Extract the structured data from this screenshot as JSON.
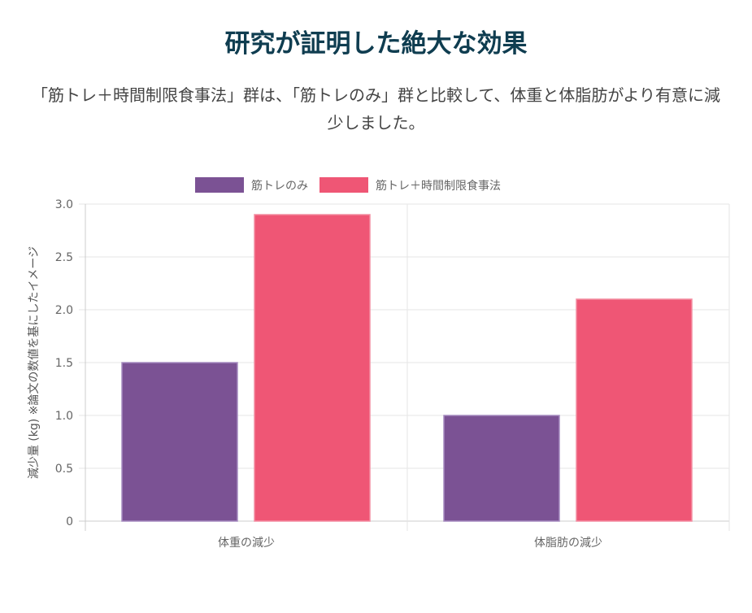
{
  "title": "研究が証明した絶大な効果",
  "subtitle": "「筋トレ＋時間制限食事法」群は、「筋トレのみ」群と比較して、体重と体脂肪がより有意に減少しました。",
  "colors": {
    "series1": "#7b5294",
    "series2": "#ef5675"
  },
  "chart_data": {
    "type": "bar",
    "categories": [
      "体重の減少",
      "体脂肪の減少"
    ],
    "series": [
      {
        "name": "筋トレのみ",
        "values": [
          1.5,
          1.0
        ]
      },
      {
        "name": "筋トレ＋時間制限食事法",
        "values": [
          2.9,
          2.1
        ]
      }
    ],
    "ylabel": "減少量 (kg) ※論文の数値を基にしたイメージ",
    "ylim": [
      0,
      3.0
    ],
    "yticks": [
      "0",
      "0.5",
      "1.0",
      "1.5",
      "2.0",
      "2.5",
      "3.0"
    ],
    "grid": true,
    "legend": "top"
  }
}
